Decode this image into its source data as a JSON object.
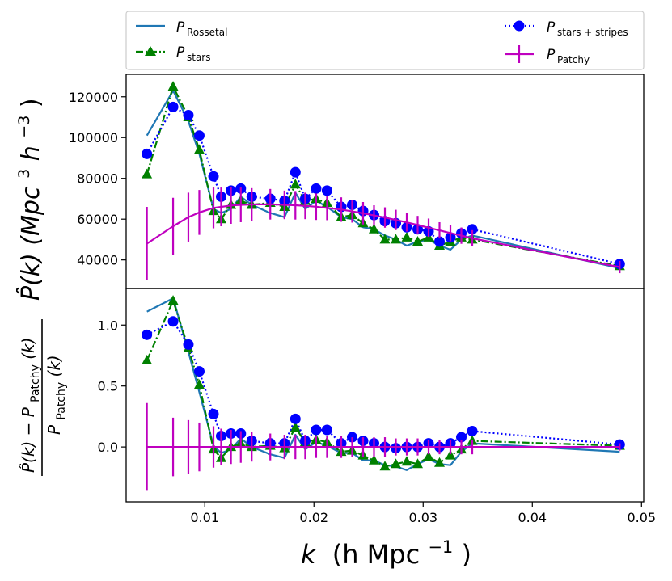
{
  "chart_data": [
    {
      "type": "line",
      "panel": "top",
      "ylabel": "P̂(k) (Mpc³h⁻³)",
      "xlim": [
        0.0028,
        0.0502
      ],
      "ylim": [
        26000,
        131000
      ],
      "yticks": [
        40000,
        60000,
        80000,
        100000,
        120000
      ],
      "ytick_labels": [
        "40000",
        "60000",
        "80000",
        "100000",
        "120000"
      ],
      "series": [
        {
          "name": "Rossetal",
          "style": "solid",
          "color": "#1f77b4",
          "x": [
            0.0047,
            0.0071,
            0.0085,
            0.0095,
            0.0108,
            0.0115,
            0.0124,
            0.0133,
            0.0143,
            0.016,
            0.0173,
            0.0183,
            0.0192,
            0.0202,
            0.0212,
            0.0225,
            0.0235,
            0.0245,
            0.0255,
            0.0265,
            0.0275,
            0.0285,
            0.0295,
            0.0305,
            0.0315,
            0.0325,
            0.0335,
            0.0345,
            0.048
          ],
          "y": [
            101000,
            123000,
            108000,
            92000,
            65000,
            63000,
            65000,
            71000,
            67000,
            63000,
            61000,
            73000,
            65000,
            69000,
            66000,
            61000,
            60000,
            56000,
            55000,
            52000,
            50000,
            47000,
            49000,
            50000,
            47000,
            45000,
            50000,
            52000,
            36000
          ]
        },
        {
          "name": "stars",
          "style": "dashdot",
          "color": "#008000",
          "marker": "triangle",
          "x": [
            0.0047,
            0.0071,
            0.0085,
            0.0095,
            0.0108,
            0.0115,
            0.0124,
            0.0133,
            0.0143,
            0.016,
            0.0173,
            0.0183,
            0.0192,
            0.0202,
            0.0212,
            0.0225,
            0.0235,
            0.0245,
            0.0255,
            0.0265,
            0.0275,
            0.0285,
            0.0295,
            0.0305,
            0.0315,
            0.0325,
            0.0335,
            0.0345,
            0.048
          ],
          "y": [
            82000,
            125000,
            110000,
            94000,
            64000,
            60000,
            67000,
            69000,
            67000,
            68000,
            66000,
            77000,
            69000,
            70000,
            68000,
            61000,
            62000,
            58000,
            55000,
            50000,
            50000,
            51000,
            49000,
            51000,
            47000,
            49000,
            51000,
            50000,
            37000
          ]
        },
        {
          "name": "stars+stripes",
          "style": "dotted",
          "color": "#0000ff",
          "marker": "circle",
          "x": [
            0.0047,
            0.0071,
            0.0085,
            0.0095,
            0.0108,
            0.0115,
            0.0124,
            0.0133,
            0.0143,
            0.016,
            0.0173,
            0.0183,
            0.0192,
            0.0202,
            0.0212,
            0.0225,
            0.0235,
            0.0245,
            0.0255,
            0.0265,
            0.0275,
            0.0285,
            0.0295,
            0.0305,
            0.0315,
            0.0325,
            0.0335,
            0.0345,
            0.048
          ],
          "y": [
            92000,
            115000,
            111000,
            101000,
            81000,
            71000,
            74000,
            75000,
            71000,
            70000,
            69000,
            83000,
            70000,
            75000,
            74000,
            66000,
            67000,
            64000,
            62000,
            59000,
            58000,
            56000,
            55000,
            54000,
            49000,
            51000,
            53000,
            55000,
            38000
          ]
        },
        {
          "name": "Patchy",
          "style": "solid",
          "color": "#bf00bf",
          "errorbars": true,
          "x": [
            0.0047,
            0.0071,
            0.0085,
            0.0095,
            0.0108,
            0.0115,
            0.0124,
            0.0133,
            0.0143,
            0.016,
            0.0173,
            0.0183,
            0.0192,
            0.0202,
            0.0212,
            0.0225,
            0.0235,
            0.0245,
            0.0255,
            0.0265,
            0.0275,
            0.0285,
            0.0295,
            0.0305,
            0.0315,
            0.0325,
            0.0335,
            0.0345,
            0.048
          ],
          "y": [
            48000,
            56500,
            61000,
            63300,
            65500,
            66000,
            66700,
            67000,
            67200,
            67300,
            67000,
            66800,
            66500,
            66100,
            65500,
            64700,
            63800,
            62900,
            61800,
            60800,
            59600,
            58400,
            57100,
            55800,
            54500,
            53200,
            51900,
            50600,
            36500
          ],
          "err": [
            18000,
            14000,
            12000,
            11000,
            10000,
            9500,
            9000,
            8500,
            8000,
            7500,
            7000,
            7000,
            6500,
            6500,
            6000,
            6000,
            5500,
            5500,
            5000,
            5000,
            5000,
            4500,
            4500,
            4500,
            4000,
            4000,
            4000,
            4000,
            3000
          ]
        }
      ]
    },
    {
      "type": "line",
      "panel": "bottom",
      "ylabel_numerator": "P̂(k) − P",
      "ylabel_denominator": "P",
      "ylabel_subscript": "Patchy",
      "ylabel_arg": "(k)",
      "xlabel": "k (h Mpc⁻¹)",
      "xlim": [
        0.0028,
        0.0502
      ],
      "ylim": [
        -0.45,
        1.3
      ],
      "yticks": [
        0.0,
        0.5,
        1.0
      ],
      "ytick_labels": [
        "0.0",
        "0.5",
        "1.0"
      ],
      "xticks": [
        0.01,
        0.02,
        0.03,
        0.04,
        0.05
      ],
      "xtick_labels": [
        "0.01",
        "0.02",
        "0.03",
        "0.04",
        "0.05"
      ],
      "series": [
        {
          "name": "Rossetal",
          "style": "solid",
          "color": "#1f77b4",
          "x": [
            0.0047,
            0.0071,
            0.0085,
            0.0095,
            0.0108,
            0.0115,
            0.0124,
            0.0133,
            0.0143,
            0.016,
            0.0173,
            0.0183,
            0.0192,
            0.0202,
            0.0212,
            0.0225,
            0.0235,
            0.0245,
            0.0255,
            0.0265,
            0.0275,
            0.0285,
            0.0295,
            0.0305,
            0.0315,
            0.0325,
            0.0335,
            0.0345,
            0.048
          ],
          "y": [
            1.11,
            1.22,
            0.78,
            0.45,
            0.01,
            -0.05,
            -0.02,
            0.07,
            0.0,
            -0.06,
            -0.09,
            0.1,
            -0.02,
            0.04,
            0.01,
            -0.05,
            -0.05,
            -0.11,
            -0.11,
            -0.15,
            -0.16,
            -0.19,
            -0.14,
            -0.1,
            -0.14,
            -0.15,
            -0.04,
            0.03,
            -0.04
          ]
        },
        {
          "name": "stars",
          "style": "dashdot",
          "color": "#008000",
          "marker": "triangle",
          "x": [
            0.0047,
            0.0071,
            0.0085,
            0.0095,
            0.0108,
            0.0115,
            0.0124,
            0.0133,
            0.0143,
            0.016,
            0.0173,
            0.0183,
            0.0192,
            0.0202,
            0.0212,
            0.0225,
            0.0235,
            0.0245,
            0.0255,
            0.0265,
            0.0275,
            0.0285,
            0.0295,
            0.0305,
            0.0315,
            0.0325,
            0.0335,
            0.0345,
            0.048
          ],
          "y": [
            0.71,
            1.2,
            0.81,
            0.51,
            -0.02,
            -0.09,
            0.0,
            0.03,
            0.0,
            0.01,
            -0.01,
            0.16,
            0.04,
            0.06,
            0.04,
            -0.04,
            -0.03,
            -0.07,
            -0.11,
            -0.16,
            -0.14,
            -0.12,
            -0.14,
            -0.08,
            -0.13,
            -0.07,
            -0.02,
            0.05,
            0.01
          ]
        },
        {
          "name": "stars+stripes",
          "style": "dotted",
          "color": "#0000ff",
          "marker": "circle",
          "x": [
            0.0047,
            0.0071,
            0.0085,
            0.0095,
            0.0108,
            0.0115,
            0.0124,
            0.0133,
            0.0143,
            0.016,
            0.0173,
            0.0183,
            0.0192,
            0.0202,
            0.0212,
            0.0225,
            0.0235,
            0.0245,
            0.0255,
            0.0265,
            0.0275,
            0.0285,
            0.0295,
            0.0305,
            0.0315,
            0.0325,
            0.0335,
            0.0345,
            0.048
          ],
          "y": [
            0.92,
            1.03,
            0.84,
            0.62,
            0.27,
            0.09,
            0.11,
            0.11,
            0.05,
            0.03,
            0.03,
            0.23,
            0.05,
            0.14,
            0.14,
            0.03,
            0.08,
            0.05,
            0.03,
            0.0,
            -0.01,
            0.0,
            0.0,
            0.03,
            0.0,
            0.03,
            0.08,
            0.13,
            0.02
          ]
        },
        {
          "name": "Patchy",
          "style": "solid",
          "color": "#bf00bf",
          "errorbars": true,
          "x": [
            0.0047,
            0.0071,
            0.0085,
            0.0095,
            0.0108,
            0.0115,
            0.0124,
            0.0133,
            0.0143,
            0.016,
            0.0173,
            0.0183,
            0.0192,
            0.0202,
            0.0212,
            0.0225,
            0.0235,
            0.0245,
            0.0255,
            0.0265,
            0.0275,
            0.0285,
            0.0295,
            0.0305,
            0.0315,
            0.0325,
            0.0335,
            0.0345,
            0.048
          ],
          "y": [
            0,
            0,
            0,
            0,
            0,
            0,
            0,
            0,
            0,
            0,
            0,
            0,
            0,
            0,
            0,
            0,
            0,
            0,
            0,
            0,
            0,
            0,
            0,
            0,
            0,
            0,
            0,
            0,
            0
          ],
          "err": [
            0.36,
            0.24,
            0.22,
            0.2,
            0.17,
            0.15,
            0.14,
            0.13,
            0.12,
            0.11,
            0.1,
            0.1,
            0.1,
            0.09,
            0.09,
            0.09,
            0.08,
            0.08,
            0.08,
            0.08,
            0.07,
            0.07,
            0.07,
            0.06,
            0.06,
            0.06,
            0.06,
            0.06,
            0.03
          ]
        }
      ]
    }
  ],
  "legend": {
    "entries": [
      {
        "key": "rossetal",
        "label_main": "P",
        "label_sub": "Rossetal",
        "color": "#1f77b4",
        "style": "solid"
      },
      {
        "key": "stars",
        "label_main": "P",
        "label_sub": "stars",
        "color": "#008000",
        "style": "dashdot"
      },
      {
        "key": "stars_stripes",
        "label_main": "P",
        "label_sub": "stars + stripes",
        "color": "#0000ff",
        "style": "dotted"
      },
      {
        "key": "patchy",
        "label_main": "P",
        "label_sub": "Patchy",
        "color": "#bf00bf",
        "style": "errorbar"
      }
    ]
  },
  "labels": {
    "top_ylabel_main": "P̂(k) (Mpc",
    "top_ylabel_sup1": "3",
    "top_ylabel_h": "h",
    "top_ylabel_sup2": "−3",
    "top_ylabel_close": ")",
    "x_k": "k",
    "x_rest": "(h Mpc",
    "x_sup": "−1",
    "x_close": ")"
  }
}
